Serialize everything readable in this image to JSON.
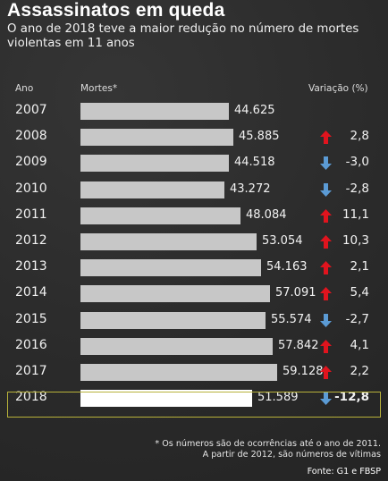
{
  "header": {
    "title": "Assassinatos em queda",
    "subtitle": "O ano de 2018 teve a maior redução no número de mortes violentas em 11 anos"
  },
  "columns": {
    "year": "Ano",
    "deaths": "Mortes*",
    "variation": "Variação (%)"
  },
  "colors": {
    "bar": "#c7c7c7",
    "highlight_bar": "#ffffff",
    "up_arrow": "#e0141e",
    "down_arrow": "#5b9bd5",
    "highlight_border": "#b8b23a",
    "background": "#2c2c2c"
  },
  "chart_data": {
    "type": "bar",
    "orientation": "horizontal",
    "categories": [
      "2007",
      "2008",
      "2009",
      "2010",
      "2011",
      "2012",
      "2013",
      "2014",
      "2015",
      "2016",
      "2017",
      "2018"
    ],
    "series": [
      {
        "name": "Mortes*",
        "values": [
          44625,
          45885,
          44518,
          43272,
          48084,
          53054,
          54163,
          57091,
          55574,
          57842,
          59128,
          51589
        ],
        "labels": [
          "44.625",
          "45.885",
          "44.518",
          "43.272",
          "48.084",
          "53.054",
          "54.163",
          "57.091",
          "55.574",
          "57.842",
          "59.128",
          "51.589"
        ]
      }
    ],
    "variation": {
      "labels": [
        "",
        "2,8",
        "-3,0",
        "-2,8",
        "11,1",
        "10,3",
        "2,1",
        "5,4",
        "-2,7",
        "4,1",
        "2,2",
        "-12,8"
      ],
      "direction": [
        "none",
        "up",
        "down",
        "down",
        "up",
        "up",
        "up",
        "up",
        "down",
        "up",
        "up",
        "down"
      ]
    },
    "highlight": "2018",
    "xlim": [
      0,
      59128
    ],
    "grid": false
  },
  "footer": {
    "note_line1": "* Os números são de ocorrências até o ano de 2011.",
    "note_line2": "A partir de 2012, são números de vítimas",
    "source": "Fonte: G1 e FBSP"
  }
}
